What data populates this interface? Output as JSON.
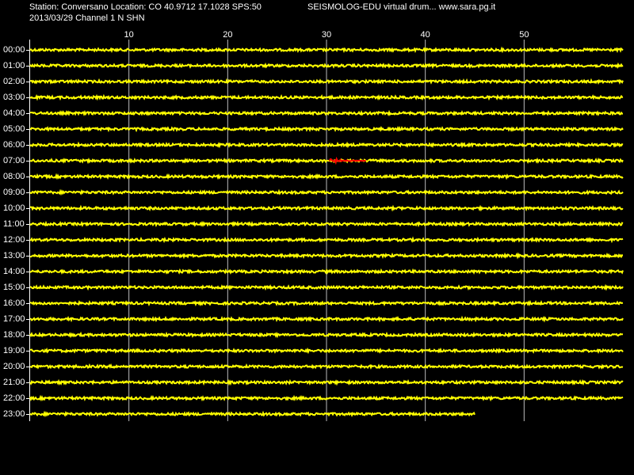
{
  "chart_data": {
    "type": "helicorder",
    "title": "Station: Conversano Location: CO 40.9712 17.1028 SPS:50",
    "subtitle": "SEISMOLOG-EDU virtual drum... www.sara.pg.it",
    "date_line": "2013/03/29  Channel 1 N SHN",
    "xlim": [
      0,
      60
    ],
    "xticks": [
      10,
      20,
      30,
      40,
      50
    ],
    "categories": [
      "00:00",
      "01:00",
      "02:00",
      "03:00",
      "04:00",
      "05:00",
      "06:00",
      "07:00",
      "08:00",
      "09:00",
      "10:00",
      "11:00",
      "12:00",
      "13:00",
      "14:00",
      "15:00",
      "16:00",
      "17:00",
      "18:00",
      "19:00",
      "20:00",
      "21:00",
      "22:00",
      "23:00"
    ],
    "values": [
      60,
      60,
      60,
      60,
      60,
      60,
      60,
      60,
      60,
      60,
      60,
      60,
      60,
      60,
      60,
      60,
      60,
      60,
      60,
      60,
      60,
      60,
      60,
      45
    ],
    "color": "#ffff00",
    "grid": true,
    "event": {
      "category": "07:00",
      "start": 30.3,
      "end": 34,
      "color": "#ff0000"
    }
  }
}
